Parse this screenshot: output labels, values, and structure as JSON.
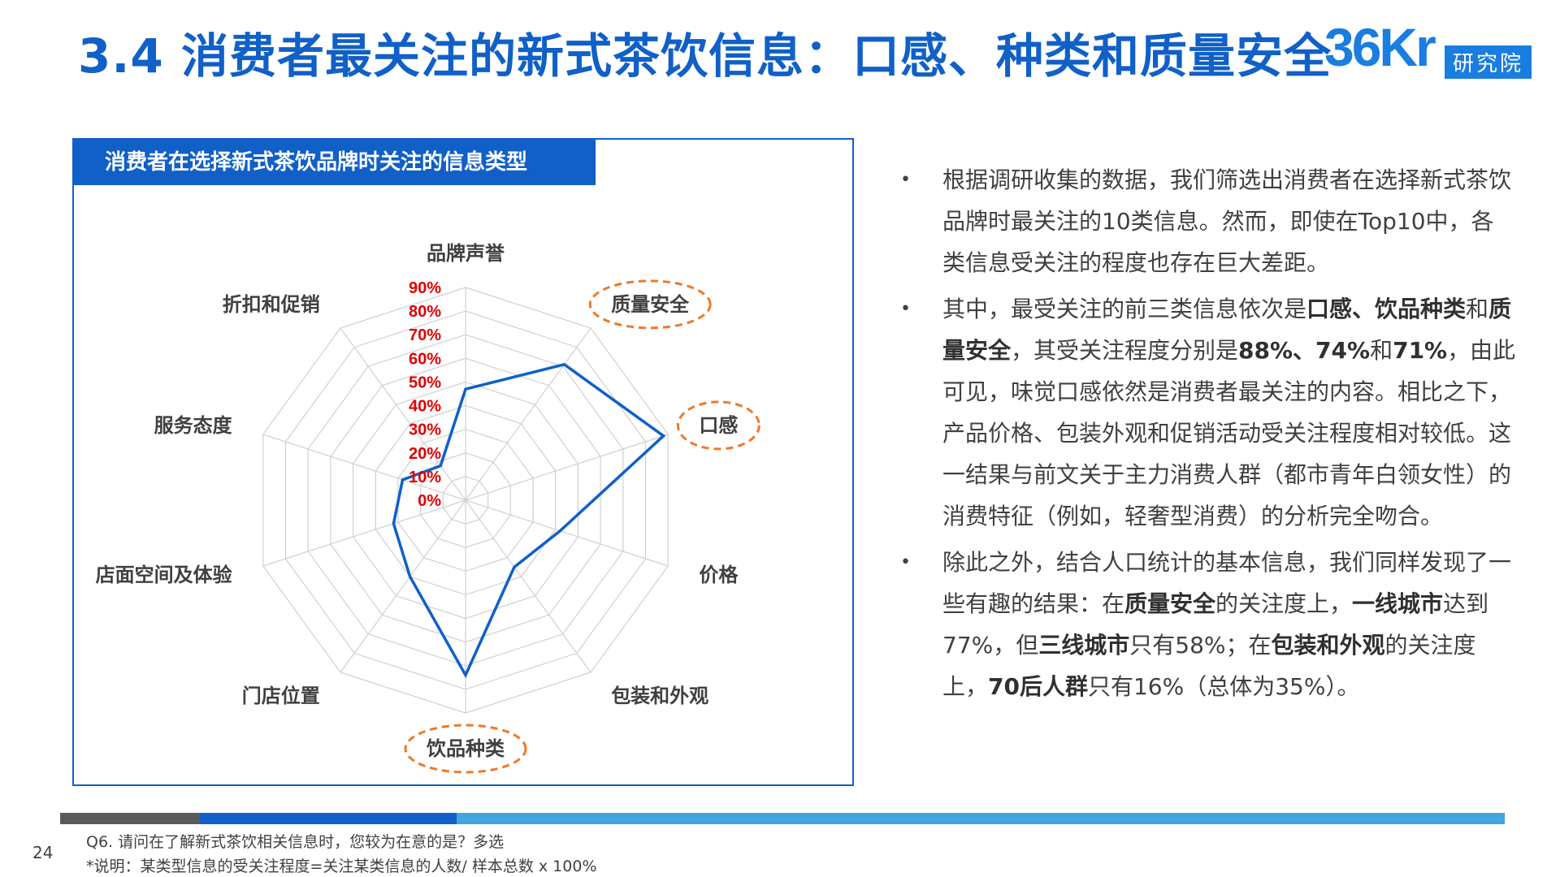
{
  "title": "3.4 消费者最关注的新式茶饮信息：口感、种类和质量安全",
  "logo": {
    "brand": "36Kr",
    "sub": "研究院"
  },
  "chart_title": "消费者在选择新式茶饮品牌时关注的信息类型",
  "chart_data": {
    "type": "radar",
    "categories": [
      "品牌声誉",
      "质量安全",
      "口感",
      "价格",
      "包装和外观",
      "饮品种类",
      "门店位置",
      "店面空间及体验",
      "服务态度",
      "折扣和促销"
    ],
    "values": [
      47,
      71,
      88,
      42,
      35,
      74,
      40,
      32,
      28,
      18
    ],
    "highlighted": [
      "质量安全",
      "口感",
      "饮品种类"
    ],
    "ticks": [
      "0%",
      "10%",
      "20%",
      "30%",
      "40%",
      "50%",
      "60%",
      "70%",
      "80%",
      "90%"
    ],
    "rlim": [
      0,
      90
    ],
    "series_color": "#1060c8",
    "tick_color": "#e00000",
    "highlight_color": "#f07828"
  },
  "bullets": [
    [
      {
        "t": "根据调研收集的数据，我们筛选出消费者在选择新式茶饮品牌时最关注的10类信息。然而，即使在Top10中，各类信息受关注的程度也存在巨大差距。"
      }
    ],
    [
      {
        "t": "其中，最受关注的前三类信息依次是"
      },
      {
        "t": "口感、饮品种类",
        "b": true
      },
      {
        "t": "和"
      },
      {
        "t": "质量安全",
        "b": true
      },
      {
        "t": "，其受关注程度分别是"
      },
      {
        "t": "88%、74%",
        "b": true
      },
      {
        "t": "和"
      },
      {
        "t": "71%",
        "b": true
      },
      {
        "t": "，由此可见，味觉口感依然是消费者最关注的内容。相比之下，产品价格、包装外观和促销活动受关注程度相对较低。这一结果与前文关于主力消费人群（都市青年白领女性）的消费特征（例如，轻奢型消费）的分析完全吻合。"
      }
    ],
    [
      {
        "t": "除此之外，结合人口统计的基本信息，我们同样发现了一些有趣的结果：在"
      },
      {
        "t": "质量安全",
        "b": true
      },
      {
        "t": "的关注度上，"
      },
      {
        "t": "一线城市",
        "b": true
      },
      {
        "t": "达到77%，但"
      },
      {
        "t": "三线城市",
        "b": true
      },
      {
        "t": "只有58%；在"
      },
      {
        "t": "包装和外观",
        "b": true
      },
      {
        "t": "的关注度上，"
      },
      {
        "t": "70后人群",
        "b": true
      },
      {
        "t": "只有16%（总体为35%）。"
      }
    ]
  ],
  "page_number": "24",
  "footnote_question": "Q6. 请问在了解新式茶饮相关信息时，您较为在意的是？多选",
  "footnote_desc": "*说明：某类型信息的受关注程度=关注某类信息的人数/ 样本总数 x 100%"
}
